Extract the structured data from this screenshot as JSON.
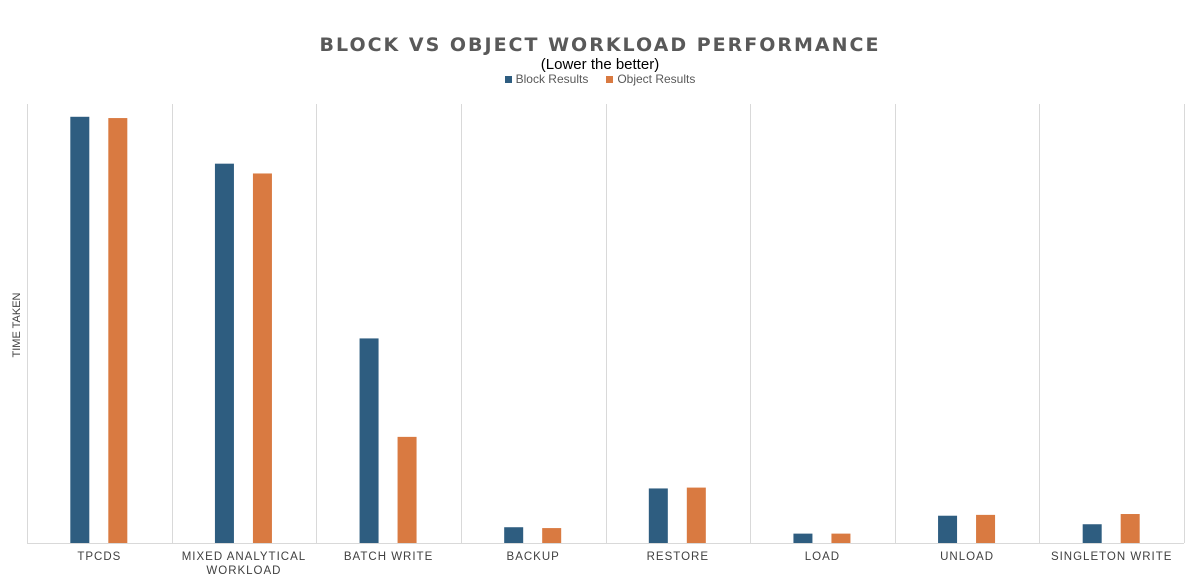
{
  "chart_data": {
    "type": "bar",
    "title": "BLOCK VS OBJECT WORKLOAD PERFORMANCE",
    "subtitle": "(Lower the better)",
    "xlabel": "",
    "ylabel": "TIME TAKEN",
    "categories": [
      [
        "TPCDS"
      ],
      [
        "MIXED ANALYTICAL",
        "WORKLOAD"
      ],
      [
        "BATCH WRITE"
      ],
      [
        "BACKUP"
      ],
      [
        "RESTORE"
      ],
      [
        "LOAD"
      ],
      [
        "UNLOAD"
      ],
      [
        "SINGLETON WRITE"
      ]
    ],
    "series": [
      {
        "name": "Block Results",
        "color": "#2e5d80",
        "values": [
          100,
          89,
          48,
          3.7,
          12.8,
          2.2,
          6.4,
          4.4
        ]
      },
      {
        "name": "Object Results",
        "color": "#d97a41",
        "values": [
          99.7,
          86.7,
          24.9,
          3.5,
          13,
          2.2,
          6.6,
          6.8
        ]
      }
    ],
    "ylim": [
      0,
      103
    ],
    "y_tick_labels_shown": false,
    "grid": "vertical category separators",
    "legend": "top-center"
  }
}
